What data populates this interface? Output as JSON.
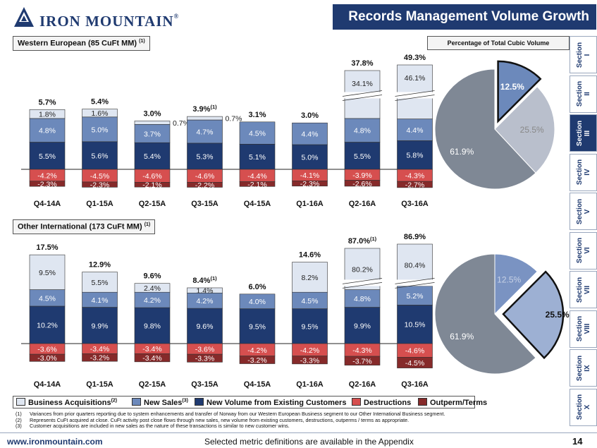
{
  "header": {
    "company": "IRON MOUNTAIN",
    "trademark": "®",
    "title": "Records Management Volume Growth"
  },
  "colors": {
    "acquisitions": "#dfe6f1",
    "new_sales": "#6c89bb",
    "existing": "#1f3a70",
    "destructions": "#d64f4f",
    "outperm": "#862a2a",
    "brand": "#1f3a70"
  },
  "pie_header": "Percentage of Total Cubic Volume",
  "chart_data": [
    {
      "type": "bar",
      "stacked": true,
      "id": "western",
      "title": "Western European (85 CuFt MM)",
      "title_note": "(1)",
      "categories": [
        "Q4-14A",
        "Q1-15A",
        "Q2-15A",
        "Q3-15A",
        "Q4-15A",
        "Q1-16A",
        "Q2-16A",
        "Q3-16A"
      ],
      "totals": [
        "5.7%",
        "5.4%",
        "3.0%",
        "3.9%",
        "3.1%",
        "3.0%",
        "37.8%",
        "49.3%"
      ],
      "total_notes": [
        "",
        "",
        "",
        "(1)",
        "",
        "",
        "",
        ""
      ],
      "positive_series": [
        {
          "key": "existing",
          "name": "New Volume from Existing Customers",
          "values": [
            5.5,
            5.6,
            5.4,
            5.3,
            5.1,
            5.0,
            5.5,
            5.8
          ],
          "labels": [
            "5.5%",
            "5.6%",
            "5.4%",
            "5.3%",
            "5.1%",
            "5.0%",
            "5.5%",
            "5.8%"
          ]
        },
        {
          "key": "new_sales",
          "name": "New Sales",
          "values": [
            4.8,
            5.0,
            3.7,
            4.7,
            4.5,
            4.4,
            4.8,
            4.4
          ],
          "labels": [
            "4.8%",
            "5.0%",
            "3.7%",
            "4.7%",
            "4.5%",
            "4.4%",
            "4.8%",
            "4.4%"
          ]
        },
        {
          "key": "acquisitions",
          "name": "Business Acquisitions",
          "values": [
            1.8,
            1.6,
            0.7,
            0.7,
            0.0,
            0.0,
            34.1,
            46.1
          ],
          "labels": [
            "1.8%",
            "1.6%",
            "0.7%",
            "0.7%",
            "",
            "",
            "34.1%",
            "46.1%"
          ],
          "outside_labels": [
            false,
            false,
            true,
            true,
            false,
            false,
            false,
            false
          ]
        }
      ],
      "negative_series": [
        {
          "key": "destructions",
          "name": "Destructions",
          "values": [
            -4.2,
            -4.5,
            -4.6,
            -4.6,
            -4.4,
            -4.1,
            -3.9,
            -4.3
          ],
          "labels": [
            "-4.2%",
            "-4.5%",
            "-4.6%",
            "-4.6%",
            "-4.4%",
            "-4.1%",
            "-3.9%",
            "-4.3%"
          ]
        },
        {
          "key": "outperm",
          "name": "Outperm/Terms",
          "values": [
            -2.3,
            -2.3,
            -2.1,
            -2.2,
            -2.1,
            -2.3,
            -2.6,
            -2.7
          ],
          "labels": [
            "-2.3%",
            "-2.3%",
            "-2.1%",
            "-2.2%",
            "-2.1%",
            "-2.3%",
            "-2.6%",
            "-2.7%"
          ]
        }
      ],
      "broken_axis_categories": [
        "Q2-16A",
        "Q3-16A"
      ]
    },
    {
      "type": "bar",
      "stacked": true,
      "id": "other",
      "title": "Other International (173 CuFt MM)",
      "title_note": "(1)",
      "categories": [
        "Q4-14A",
        "Q1-15A",
        "Q2-15A",
        "Q3-15A",
        "Q4-15A",
        "Q1-16A",
        "Q2-16A",
        "Q3-16A"
      ],
      "totals": [
        "17.5%",
        "12.9%",
        "9.6%",
        "8.4%",
        "6.0%",
        "14.6%",
        "87.0%",
        "86.9%"
      ],
      "total_notes": [
        "",
        "",
        "",
        "(1)",
        "",
        "",
        "(1)",
        ""
      ],
      "positive_series": [
        {
          "key": "existing",
          "name": "New Volume from Existing Customers",
          "values": [
            10.2,
            9.9,
            9.8,
            9.6,
            9.5,
            9.5,
            9.9,
            10.5
          ],
          "labels": [
            "10.2%",
            "9.9%",
            "9.8%",
            "9.6%",
            "9.5%",
            "9.5%",
            "9.9%",
            "10.5%"
          ]
        },
        {
          "key": "new_sales",
          "name": "New Sales",
          "values": [
            4.5,
            4.1,
            4.2,
            4.2,
            4.0,
            4.5,
            4.8,
            5.2
          ],
          "labels": [
            "4.5%",
            "4.1%",
            "4.2%",
            "4.2%",
            "4.0%",
            "4.5%",
            "4.8%",
            "5.2%"
          ]
        },
        {
          "key": "acquisitions",
          "name": "Business Acquisitions",
          "values": [
            9.5,
            5.5,
            2.4,
            1.4,
            0.0,
            8.2,
            80.2,
            80.4
          ],
          "labels": [
            "9.5%",
            "5.5%",
            "2.4%",
            "1.4%",
            "",
            "8.2%",
            "80.2%",
            "80.4%"
          ],
          "outside_labels": [
            false,
            false,
            false,
            false,
            false,
            false,
            false,
            false
          ]
        }
      ],
      "negative_series": [
        {
          "key": "destructions",
          "name": "Destructions",
          "values": [
            -3.6,
            -3.4,
            -3.4,
            -3.6,
            -4.2,
            -4.2,
            -4.3,
            -4.6
          ],
          "labels": [
            "-3.6%",
            "-3.4%",
            "-3.4%",
            "-3.6%",
            "-4.2%",
            "-4.2%",
            "-4.3%",
            "-4.6%"
          ]
        },
        {
          "key": "outperm",
          "name": "Outperm/Terms",
          "values": [
            -3.0,
            -3.2,
            -3.4,
            -3.3,
            -3.2,
            -3.3,
            -3.7,
            -4.5
          ],
          "labels": [
            "-3.0%",
            "-3.2%",
            "-3.4%",
            "-3.3%",
            "-3.2%",
            "-3.3%",
            "-3.7%",
            "-4.5%"
          ]
        }
      ],
      "broken_axis_categories": [
        "Q2-16A",
        "Q3-16A"
      ]
    },
    {
      "type": "pie",
      "id": "pie-western",
      "slices": [
        {
          "label": "12.5%",
          "value": 12.5,
          "highlight": true
        },
        {
          "label": "25.5%",
          "value": 25.5,
          "highlight": false
        },
        {
          "label": "61.9%",
          "value": 61.9,
          "highlight": false
        }
      ]
    },
    {
      "type": "pie",
      "id": "pie-other",
      "slices": [
        {
          "label": "12.5%",
          "value": 12.5,
          "highlight": false
        },
        {
          "label": "25.5%",
          "value": 25.5,
          "highlight": true
        },
        {
          "label": "61.9%",
          "value": 61.9,
          "highlight": false
        }
      ]
    }
  ],
  "legend": {
    "items": [
      {
        "label": "Business Acquisitions",
        "note": "(2)"
      },
      {
        "label": "New Sales",
        "note": "(3)"
      },
      {
        "label": "New Volume from Existing Customers",
        "note": ""
      },
      {
        "label": "Destructions",
        "note": ""
      },
      {
        "label": "Outperm/Terms",
        "note": ""
      }
    ]
  },
  "footnotes": [
    {
      "num": "(1)",
      "text": "Variances from prior quarters reporting due to system enhancements and transfer of Norway from our Western European Business segment to our Other International Business segment."
    },
    {
      "num": "(2)",
      "text": "Represents CuFt acquired at close. CuFt activity post close flows through new sales, new volume from existing customers, destructions, outperms / terms as appropriate."
    },
    {
      "num": "(3)",
      "text": "Customer acquisitions are included in new sales as the nature of these transactions is similar to new customer wins."
    }
  ],
  "nav": {
    "sections": [
      {
        "word": "Section",
        "num": "I",
        "active": false
      },
      {
        "word": "Section",
        "num": "II",
        "active": false
      },
      {
        "word": "Section",
        "num": "III",
        "active": true
      },
      {
        "word": "Section",
        "num": "IV",
        "active": false
      },
      {
        "word": "Section",
        "num": "V",
        "active": false
      },
      {
        "word": "Section",
        "num": "VI",
        "active": false
      },
      {
        "word": "Section",
        "num": "VII",
        "active": false
      },
      {
        "word": "Section",
        "num": "VIII",
        "active": false
      },
      {
        "word": "Section",
        "num": "IX",
        "active": false
      },
      {
        "word": "Section",
        "num": "X",
        "active": false
      }
    ]
  },
  "footer": {
    "url": "www.ironmountain.com",
    "center": "Selected metric definitions are available in the Appendix",
    "page": "14"
  }
}
